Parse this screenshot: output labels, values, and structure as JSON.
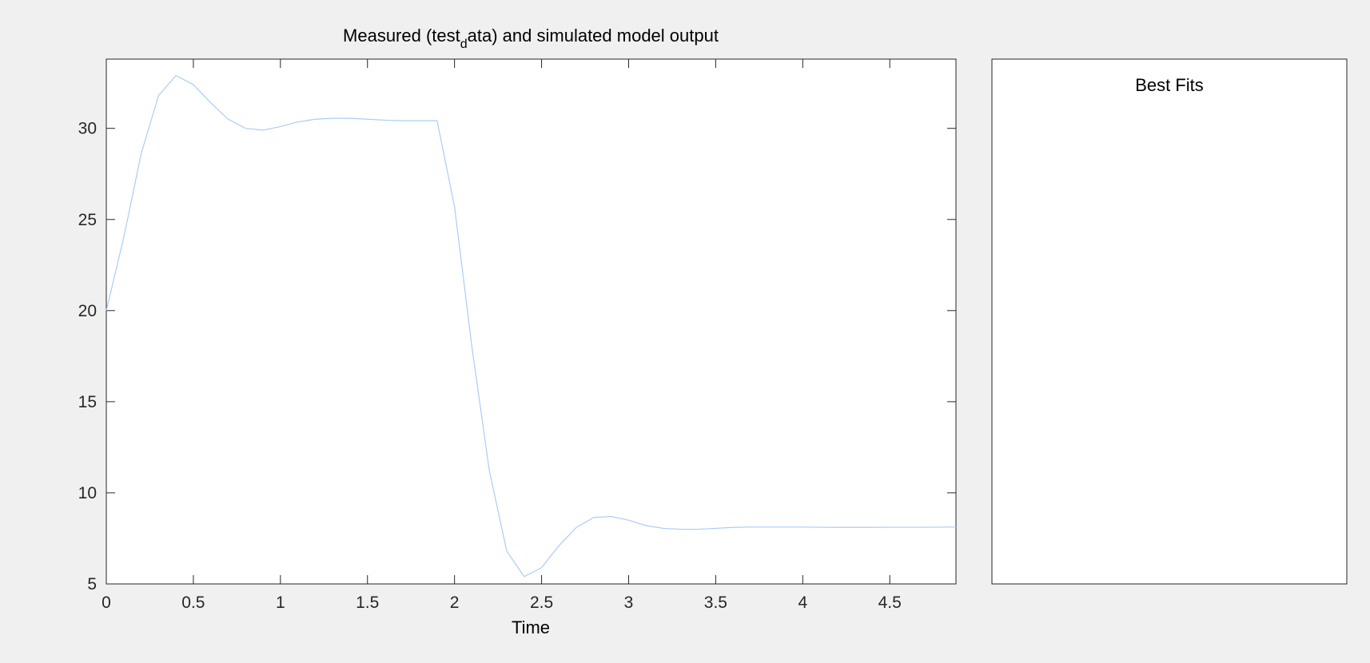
{
  "colors": {
    "background": "#f0f0f0",
    "axes_background": "#ffffff",
    "axes_edge": "#262626",
    "series_line": "#a9cdf7"
  },
  "chart_data": [
    {
      "type": "line",
      "title": {
        "prefix": "Measured (test",
        "subscript": "d",
        "suffix": "ata) and simulated model output"
      },
      "xlabel": "Time",
      "ylabel": "",
      "xlim": [
        0,
        4.88
      ],
      "ylim": [
        5,
        33.8
      ],
      "xticks": [
        0,
        0.5,
        1,
        1.5,
        2,
        2.5,
        3,
        3.5,
        4,
        4.5
      ],
      "xtick_labels": [
        "0",
        "0.5",
        "1",
        "1.5",
        "2",
        "2.5",
        "3",
        "3.5",
        "4",
        "4.5"
      ],
      "yticks": [
        5,
        10,
        15,
        20,
        25,
        30
      ],
      "ytick_labels": [
        "5",
        "10",
        "15",
        "20",
        "25",
        "30"
      ],
      "grid": false,
      "series": [
        {
          "x": [
            0,
            0.1,
            0.2,
            0.3,
            0.4,
            0.5,
            0.6,
            0.7,
            0.8,
            0.9,
            1.0,
            1.1,
            1.2,
            1.3,
            1.4,
            1.5,
            1.6,
            1.7,
            1.8,
            1.9,
            2.0,
            2.1,
            2.2,
            2.3,
            2.4,
            2.5,
            2.6,
            2.7,
            2.8,
            2.9,
            3.0,
            3.1,
            3.2,
            3.3,
            3.4,
            3.5,
            3.6,
            3.7,
            3.8,
            3.9,
            4.0,
            4.1,
            4.2,
            4.3,
            4.4,
            4.5,
            4.6,
            4.7,
            4.88
          ],
          "y": [
            20.0,
            24.0,
            28.6,
            31.8,
            32.9,
            32.4,
            31.4,
            30.5,
            30.0,
            29.9,
            30.1,
            30.35,
            30.5,
            30.55,
            30.55,
            30.5,
            30.45,
            30.42,
            30.42,
            30.42,
            25.7,
            18.0,
            11.2,
            6.8,
            5.4,
            5.9,
            7.1,
            8.1,
            8.65,
            8.7,
            8.5,
            8.2,
            8.05,
            8.0,
            8.0,
            8.05,
            8.1,
            8.12,
            8.12,
            8.12,
            8.12,
            8.11,
            8.1,
            8.1,
            8.1,
            8.11,
            8.11,
            8.11,
            8.12
          ]
        }
      ]
    },
    {
      "type": "line",
      "title": "Best Fits",
      "series": []
    }
  ]
}
